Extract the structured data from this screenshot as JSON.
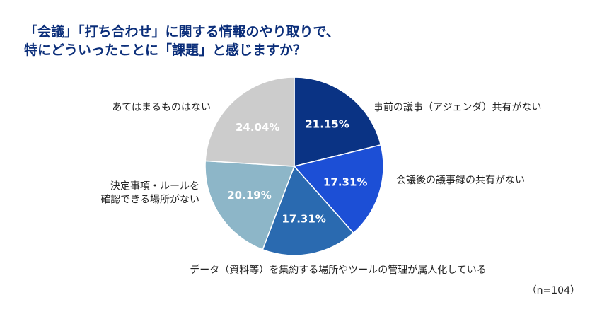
{
  "title": {
    "line1": "「会議」「打ち合わせ」に関する情報のやり取りで、",
    "line2": "特にどういったことに「課題」と感じますか？"
  },
  "note": "（n=104）",
  "chart_data": {
    "type": "pie",
    "title": "「会議」「打ち合わせ」に関する情報のやり取りで、特にどういったことに「課題」と感じますか？",
    "start": "12 o'clock, clockwise",
    "slices": [
      {
        "label_lines": [
          "事前の議事（アジェンダ）共有がない"
        ],
        "value": 21.15,
        "value_label": "21.15%",
        "color": "#0a3384"
      },
      {
        "label_lines": [
          "会議後の議事録の共有がない"
        ],
        "value": 17.31,
        "value_label": "17.31%",
        "color": "#1c4fd6"
      },
      {
        "label_lines": [
          "データ（資料等）を集約する場所やツールの管理が属人化している"
        ],
        "value": 17.31,
        "value_label": "17.31%",
        "color": "#2a6ab0"
      },
      {
        "label_lines": [
          "決定事項・ルールを",
          "確認できる場所がない"
        ],
        "value": 20.19,
        "value_label": "20.19%",
        "color": "#8db6c8"
      },
      {
        "label_lines": [
          "あてはまるものはない"
        ],
        "value": 24.04,
        "value_label": "24.04%",
        "color": "#cccccc"
      }
    ]
  }
}
